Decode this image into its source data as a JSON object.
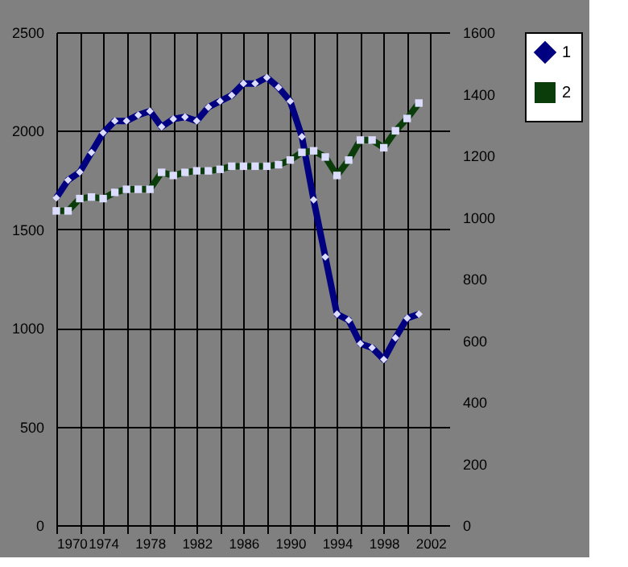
{
  "chart_data": {
    "type": "line",
    "x": [
      1970,
      1971,
      1972,
      1973,
      1974,
      1975,
      1976,
      1977,
      1978,
      1979,
      1980,
      1981,
      1982,
      1983,
      1984,
      1985,
      1986,
      1987,
      1988,
      1989,
      1990,
      1991,
      1992,
      1993,
      1994,
      1995,
      1996,
      1997,
      1998,
      1999,
      2000,
      2001
    ],
    "series": [
      {
        "name": "1",
        "color": "#000080",
        "marker": "diamond",
        "values": [
          1660,
          1750,
          1790,
          1890,
          1990,
          2050,
          2050,
          2080,
          2100,
          2020,
          2060,
          2070,
          2050,
          2120,
          2150,
          2180,
          2240,
          2240,
          2270,
          2220,
          2150,
          1970,
          1650,
          1360,
          1070,
          1040,
          920,
          900,
          840,
          950,
          1050,
          1070
        ]
      },
      {
        "name": "2",
        "color": "#0b3d0b",
        "marker": "square",
        "axis": "y2",
        "values": [
          1020,
          1020,
          1060,
          1065,
          1060,
          1080,
          1090,
          1090,
          1090,
          1145,
          1135,
          1145,
          1150,
          1150,
          1155,
          1165,
          1165,
          1165,
          1165,
          1170,
          1185,
          1210,
          1215,
          1195,
          1135,
          1185,
          1250,
          1250,
          1225,
          1280,
          1320,
          1370
        ]
      }
    ],
    "xlim": [
      1970,
      2003.6
    ],
    "xticks": [
      1970,
      {
        "value": 1972,
        "label": null
      },
      1974,
      {
        "value": 1976,
        "label": null
      },
      1978,
      {
        "value": 1980,
        "label": null
      },
      1982,
      {
        "value": 1984,
        "label": null
      },
      1986,
      {
        "value": 1988,
        "label": null
      },
      1990,
      {
        "value": 1992,
        "label": null
      },
      1994,
      {
        "value": 1996,
        "label": null
      },
      1998,
      {
        "value": 2000,
        "label": null
      },
      2002
    ],
    "ylim": [
      0,
      2500
    ],
    "yticks": [
      0,
      500,
      1000,
      1500,
      2000,
      2500
    ],
    "y2lim": [
      0,
      1600
    ],
    "y2ticks": [
      0,
      200,
      400,
      600,
      800,
      1000,
      1200,
      1400,
      1600
    ],
    "grid": true,
    "legend": "right",
    "line_style": "solid"
  }
}
